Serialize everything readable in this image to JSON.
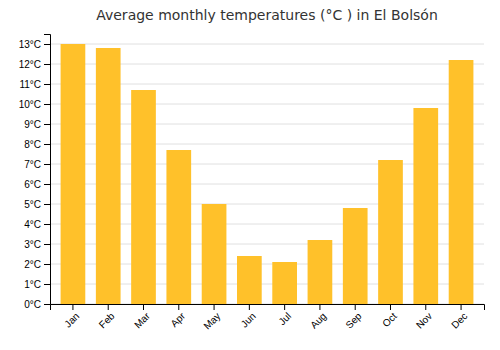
{
  "chart_data": {
    "type": "bar",
    "title": "Average monthly temperatures (°C ) in El Bolsón",
    "categories": [
      "Jan",
      "Feb",
      "Mar",
      "Apr",
      "May",
      "Jun",
      "Jul",
      "Aug",
      "Sep",
      "Oct",
      "Nov",
      "Dec"
    ],
    "values": [
      13.0,
      12.8,
      10.7,
      7.7,
      5.0,
      2.4,
      2.1,
      3.2,
      4.8,
      7.2,
      9.8,
      12.2
    ],
    "color": "#FFC12A",
    "ylim": [
      0,
      13.5
    ],
    "yticks": [
      {
        "value": 0,
        "label": "0°C"
      },
      {
        "value": 1,
        "label": "1°C"
      },
      {
        "value": 2,
        "label": "2°C"
      },
      {
        "value": 3,
        "label": "3°C"
      },
      {
        "value": 4,
        "label": "4°C"
      },
      {
        "value": 5,
        "label": "5°C"
      },
      {
        "value": 6,
        "label": "6°C"
      },
      {
        "value": 7,
        "label": "7°C"
      },
      {
        "value": 8,
        "label": "8°C"
      },
      {
        "value": 9,
        "label": "9°C"
      },
      {
        "value": 10,
        "label": "10°C"
      },
      {
        "value": 11,
        "label": "11°C"
      },
      {
        "value": 12,
        "label": "12°C"
      },
      {
        "value": 13,
        "label": "13°C"
      }
    ],
    "grid": true
  }
}
